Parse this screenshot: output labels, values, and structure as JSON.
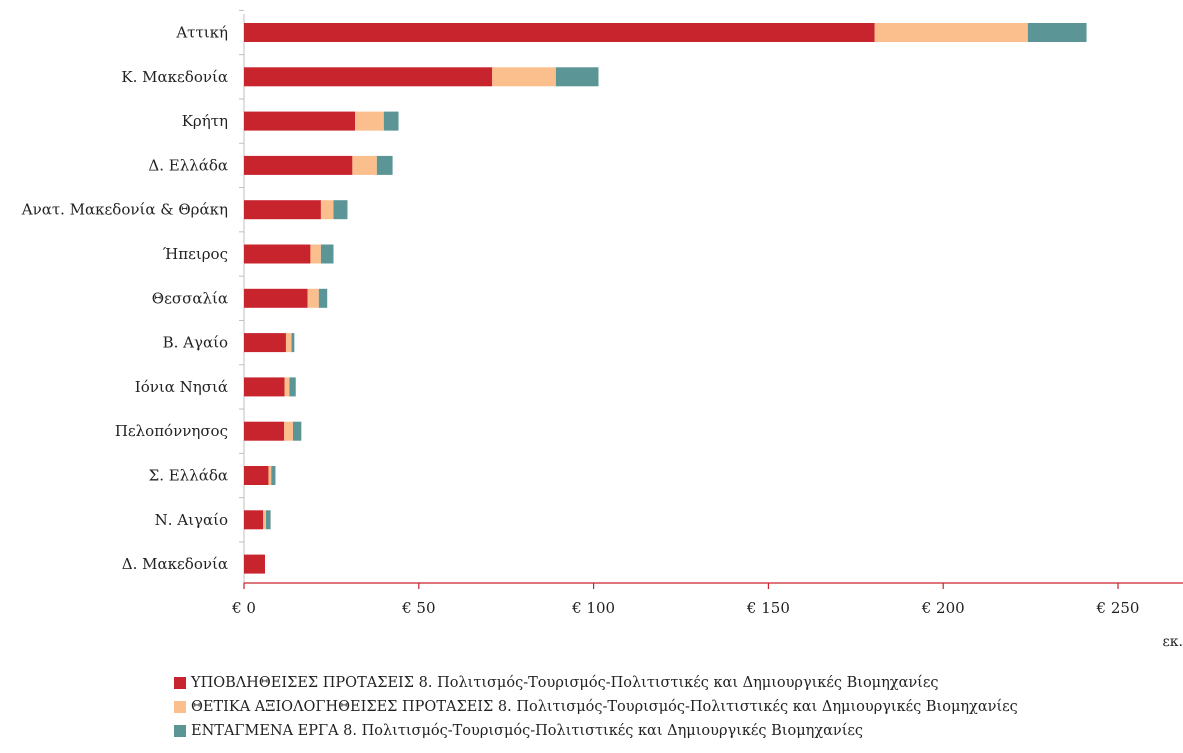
{
  "chart_data": {
    "type": "bar",
    "orientation": "horizontal",
    "stacked": true,
    "categories": [
      "Αττική",
      "Κ. Μακεδονία",
      "Κρήτη",
      "Δ. Ελλάδα",
      "Ανατ. Μακεδονία & Θράκη",
      "Ήπειρος",
      "Θεσσαλία",
      "Β. Αγαίο",
      "Ιόνια Νησιά",
      "Πελοπόννησος",
      "Σ. Ελλάδα",
      "Ν. Αιγαίο",
      "Δ. Μακεδονία"
    ],
    "series": [
      {
        "name": "ΥΠΟΒΛΗΘΕΙΣΕΣ ΠΡΟΤΑΣΕΙΣ 8. Πολιτισμός-Τουρισμός-Πολιτιστικές και Δημιουργικές Βιομηχανίες",
        "color": "#c8242e",
        "values": [
          180.4,
          71.0,
          31.8,
          31.0,
          22.0,
          19.0,
          18.2,
          12.0,
          11.6,
          11.5,
          7.0,
          5.5,
          6.0
        ]
      },
      {
        "name": "ΘΕΤΙΚΑ ΑΞΙΟΛΟΓΗΘΕΙΣΕΣ ΠΡΟΤΑΣΕΙΣ 8. Πολιτισμός-Τουρισμός-Πολιτιστικές και Δημιουργικές Βιομηχανίες",
        "color": "#fbbf8e",
        "values": [
          43.8,
          18.2,
          8.2,
          7.0,
          3.6,
          3.0,
          3.2,
          1.6,
          1.4,
          2.5,
          0.8,
          0.8,
          0.0
        ]
      },
      {
        "name": "ΕΝΤΑΓΜΕΝΑ ΕΡΓΑ 8. Πολιτισμός-Τουρισμός-Πολιτιστικές και Δημιουργικές Βιομηχανίες",
        "color": "#5b9595",
        "values": [
          16.8,
          12.2,
          4.2,
          4.5,
          4.0,
          3.6,
          2.4,
          0.8,
          1.8,
          2.4,
          1.2,
          1.3,
          0.0
        ]
      }
    ],
    "xlim": [
      0,
      265
    ],
    "xticks": [
      0,
      50,
      100,
      150,
      200,
      250
    ],
    "xtick_labels": [
      "€ 0",
      "€ 50",
      "€ 100",
      "€ 150",
      "€ 200",
      "€ 250"
    ],
    "unit_label": "εκ.",
    "axis_color": "#c8242e",
    "legend_position": "bottom"
  }
}
